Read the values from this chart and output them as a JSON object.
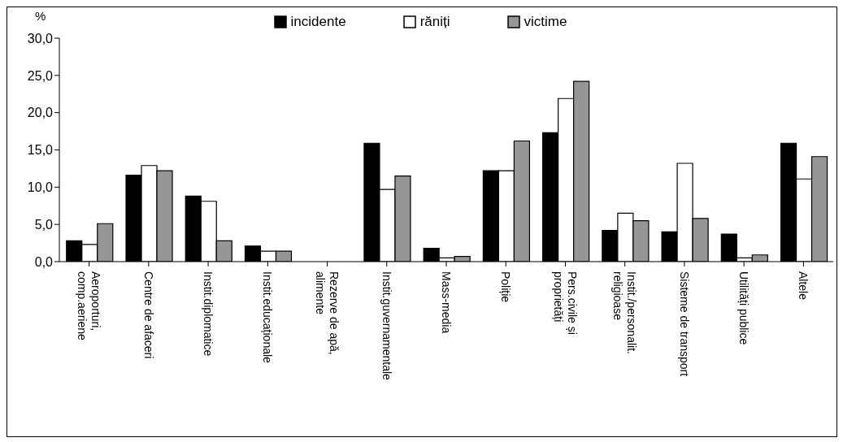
{
  "chart_data": {
    "type": "bar",
    "ylabel": "%",
    "categories": [
      "Aeroporturi,\ncomp.aeriene",
      "Centre de afaceri",
      "Instit.diplomatice",
      "Instit.educaționale",
      "Rezerve de apă,\nalimente",
      "Instit.guvernamentale",
      "Mass-media",
      "Poliție",
      "Pers.civile și\nproprietăți",
      "Instit./personalit.\nreligioase",
      "Sisteme de transport",
      "Utilități publice",
      "Altele"
    ],
    "series": [
      {
        "name": "incidente",
        "color": "#000000",
        "values": [
          2.8,
          11.6,
          8.8,
          2.1,
          0,
          15.9,
          1.8,
          12.2,
          17.3,
          4.2,
          4.0,
          3.7,
          15.9
        ]
      },
      {
        "name": "răniți",
        "color": "#ffffff",
        "values": [
          2.3,
          12.9,
          8.1,
          1.4,
          0,
          9.7,
          0.5,
          12.2,
          21.9,
          6.5,
          13.2,
          0.5,
          11.1
        ]
      },
      {
        "name": "victime",
        "color": "#969696",
        "values": [
          5.1,
          12.2,
          2.8,
          1.4,
          0,
          11.5,
          0.7,
          16.2,
          24.2,
          5.5,
          5.8,
          0.9,
          14.1
        ]
      }
    ],
    "ylim": [
      0,
      30
    ],
    "yticks": [
      {
        "value": 0,
        "label": "0,0"
      },
      {
        "value": 5,
        "label": "5,0"
      },
      {
        "value": 10,
        "label": "10,0"
      },
      {
        "value": 15,
        "label": "15,0"
      },
      {
        "value": 20,
        "label": "20,0"
      },
      {
        "value": 25,
        "label": "25,0"
      },
      {
        "value": 30,
        "label": "30,0"
      }
    ],
    "grid": false,
    "legend": "top"
  }
}
